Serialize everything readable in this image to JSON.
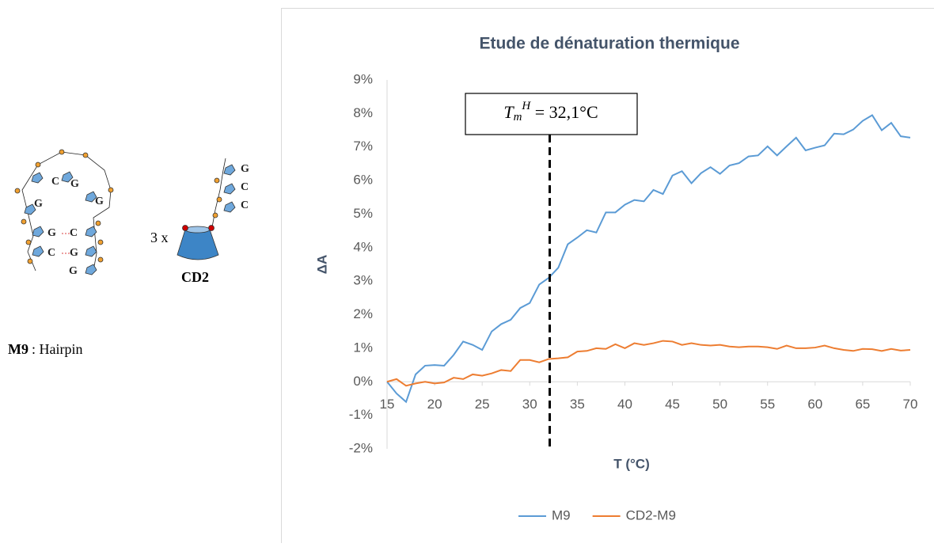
{
  "chart_data": {
    "type": "line",
    "title": "Etude de dénaturation thermique",
    "x_label": "T (°C)",
    "y_label": "ΔA",
    "x": [
      15,
      16,
      17,
      18,
      19,
      20,
      21,
      22,
      23,
      24,
      25,
      26,
      27,
      28,
      29,
      30,
      31,
      32,
      33,
      34,
      35,
      36,
      37,
      38,
      39,
      40,
      41,
      42,
      43,
      44,
      45,
      46,
      47,
      48,
      49,
      50,
      51,
      52,
      53,
      54,
      55,
      56,
      57,
      58,
      59,
      60,
      61,
      62,
      63,
      64,
      65,
      66,
      67,
      68,
      69,
      70
    ],
    "series": [
      {
        "name": "M9",
        "color": "#5b9bd5",
        "values": [
          0,
          -0.35,
          -0.6,
          0.22,
          0.48,
          0.5,
          0.48,
          0.8,
          1.2,
          1.1,
          0.95,
          1.5,
          1.72,
          1.85,
          2.2,
          2.35,
          2.9,
          3.1,
          3.4,
          4.1,
          4.3,
          4.52,
          4.45,
          5.05,
          5.05,
          5.28,
          5.42,
          5.38,
          5.72,
          5.6,
          6.15,
          6.28,
          5.92,
          6.22,
          6.4,
          6.2,
          6.45,
          6.52,
          6.72,
          6.75,
          7.02,
          6.75,
          7.02,
          7.28,
          6.9,
          6.98,
          7.05,
          7.4,
          7.38,
          7.52,
          7.78,
          7.95,
          7.5,
          7.72,
          7.32,
          7.28
        ]
      },
      {
        "name": "CD2-M9",
        "color": "#ed7d31",
        "values": [
          0,
          0.08,
          -0.12,
          -0.05,
          0,
          -0.05,
          -0.02,
          0.12,
          0.08,
          0.22,
          0.18,
          0.25,
          0.35,
          0.32,
          0.65,
          0.65,
          0.58,
          0.68,
          0.7,
          0.73,
          0.9,
          0.92,
          1.0,
          0.98,
          1.12,
          1.0,
          1.15,
          1.1,
          1.15,
          1.22,
          1.2,
          1.1,
          1.15,
          1.1,
          1.08,
          1.1,
          1.05,
          1.03,
          1.05,
          1.05,
          1.03,
          0.98,
          1.08,
          1.0,
          1.0,
          1.02,
          1.08,
          1.0,
          0.95,
          0.92,
          0.98,
          0.97,
          0.92,
          0.98,
          0.93,
          0.95
        ]
      }
    ],
    "xlim": [
      15,
      70
    ],
    "xticks": [
      15,
      20,
      25,
      30,
      35,
      40,
      45,
      50,
      55,
      60,
      65,
      70
    ],
    "ylim": [
      -2,
      9
    ],
    "yticks": [
      {
        "value": -2,
        "label": "-2%"
      },
      {
        "value": -1,
        "label": "-1%"
      },
      {
        "value": 0,
        "label": "0%"
      },
      {
        "value": 1,
        "label": "1%"
      },
      {
        "value": 2,
        "label": "2%"
      },
      {
        "value": 3,
        "label": "3%"
      },
      {
        "value": 4,
        "label": "4%"
      },
      {
        "value": 5,
        "label": "5%"
      },
      {
        "value": 6,
        "label": "6%"
      },
      {
        "value": 7,
        "label": "7%"
      },
      {
        "value": 8,
        "label": "8%"
      },
      {
        "value": 9,
        "label": "9%"
      }
    ],
    "grid": false,
    "legend": "bottom",
    "annotation": {
      "symbol": "T",
      "subscript": "m",
      "superscript": "H",
      "text": " = 32,1°C",
      "x": 32.1
    }
  },
  "diagram": {
    "name": "M9",
    "caption": ": Hairpin",
    "multiplier": "3 x",
    "cyclodextrin": "CD2",
    "bases": [
      "C",
      "G",
      "G",
      "G",
      "G",
      "C",
      "C",
      "G",
      "G",
      "G",
      "C",
      "C"
    ]
  }
}
